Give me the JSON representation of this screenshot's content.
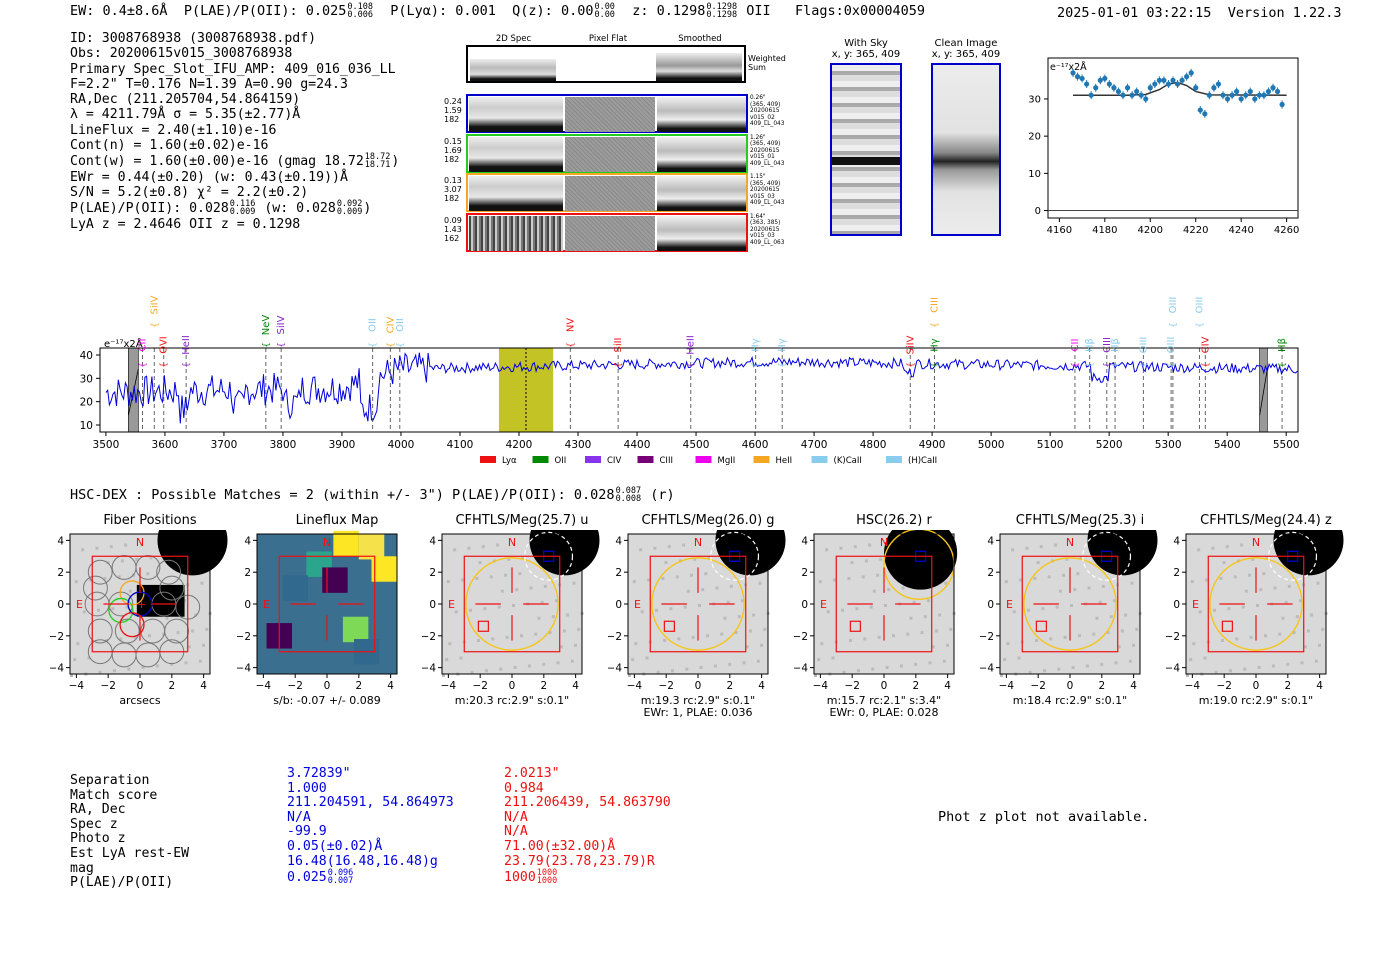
{
  "header": {
    "ew": "EW: 0.4±8.6Å",
    "plae_label": "P(LAE)/P(OII): 0.025",
    "plae_hi": "0.108",
    "plae_lo": "0.006",
    "plya": "P(Lyα): 0.001",
    "qz_label": "Q(z): 0.00",
    "qz_hi": "0.00",
    "qz_lo": "0.00",
    "z_label": "z: 0.1298",
    "z_hi": "0.1298",
    "z_lo": "0.1298",
    "z_line": "OII",
    "flags": "Flags:0x00004059",
    "timestamp": "2025-01-01 03:22:15",
    "version": "Version 1.22.3"
  },
  "info": {
    "id": "ID: 3008768938 (3008768938.pdf)",
    "obs": "Obs: 20200615v015_3008768938",
    "slot": "Primary Spec_Slot_IFU_AMP: 409_016_036_LL",
    "params": "F=2.2\"  T=0.176  N=1.39  A=0.90  g=24.3",
    "radec": "RA,Dec (211.205704,54.864159)",
    "lambda": "λ = 4211.79Å  σ = 5.35(±2.77)Å",
    "lineflux": "LineFlux = 2.40(±1.10)e-16",
    "contn": "Cont(n) = 1.60(±0.02)e-16",
    "contw": "Cont(w) = 1.60(±0.00)e-16 (gmag 18.72",
    "contw_hi": "18.72",
    "contw_lo": "18.71",
    "ewr": "EWr = 0.44(±0.20) (w: 0.43(±0.19))Å",
    "sn": "S/N = 5.2(±0.8)  χ² = 2.2(±0.2)",
    "plae": "P(LAE)/P(OII): 0.028",
    "plae_hi": "0.116",
    "plae_lo": "0.009",
    "plae_w": "(w: 0.028",
    "plae_w_hi": "0.092",
    "plae_w_lo": "0.009",
    "lyaz": "LyA z = 2.4646  OII z = 0.1298"
  },
  "spec2d": {
    "col_titles": [
      "2D Spec",
      "Pixel Flat",
      "Smoothed"
    ],
    "weighted_sum": [
      "Weighted",
      "Sum"
    ],
    "rows": [
      {
        "stats": [
          "0.24",
          "1.59",
          "182"
        ],
        "meta": [
          "0.26\"",
          "(365, 409)",
          "20200615",
          "v015_02",
          "409_LL_043"
        ],
        "color": "#0000cc"
      },
      {
        "stats": [
          "0.15",
          "1.69",
          "182"
        ],
        "meta": [
          "1.26\"",
          "(365, 409)",
          "20200615",
          "v015_01",
          "409_LL_043"
        ],
        "color": "#22cc22"
      },
      {
        "stats": [
          "0.13",
          "3.07",
          "182"
        ],
        "meta": [
          "1.15\"",
          "(365, 409)",
          "20200615",
          "v015_03",
          "409_LL_043"
        ],
        "color": "#f5a623"
      },
      {
        "stats": [
          "0.09",
          "1.43",
          "162"
        ],
        "meta": [
          "1.64\"",
          "(363, 385)",
          "20200615",
          "v015_03",
          "409_LL_063"
        ],
        "color": "#ee1111"
      }
    ]
  },
  "cutouts": {
    "with_sky": [
      "With Sky",
      "x, y: 365, 409"
    ],
    "clean": [
      "Clean Image",
      "x, y: 365, 409"
    ]
  },
  "zoom_plot": {
    "scale_label": "e⁻¹⁷x2Å",
    "x_ticks": [
      "4160",
      "4180",
      "4200",
      "4220",
      "4240",
      "4260"
    ],
    "y_ticks": [
      "0",
      "10",
      "20",
      "30"
    ],
    "xlim": [
      4155,
      4265
    ],
    "ylim": [
      -2,
      41
    ],
    "points": [
      [
        4166,
        37
      ],
      [
        4168,
        36
      ],
      [
        4170,
        35.5
      ],
      [
        4172,
        34
      ],
      [
        4174,
        31
      ],
      [
        4176,
        33
      ],
      [
        4178,
        35
      ],
      [
        4180,
        35.5
      ],
      [
        4182,
        34
      ],
      [
        4184,
        33
      ],
      [
        4186,
        32
      ],
      [
        4188,
        31
      ],
      [
        4190,
        33
      ],
      [
        4192,
        31
      ],
      [
        4194,
        32
      ],
      [
        4196,
        31
      ],
      [
        4198,
        30
      ],
      [
        4200,
        33
      ],
      [
        4202,
        34
      ],
      [
        4204,
        35
      ],
      [
        4206,
        35
      ],
      [
        4208,
        34
      ],
      [
        4210,
        35
      ],
      [
        4212,
        34
      ],
      [
        4214,
        35
      ],
      [
        4216,
        36
      ],
      [
        4218,
        37
      ],
      [
        4220,
        33
      ],
      [
        4222,
        27
      ],
      [
        4224,
        26
      ],
      [
        4226,
        31
      ],
      [
        4228,
        33
      ],
      [
        4230,
        34
      ],
      [
        4232,
        31
      ],
      [
        4234,
        30
      ],
      [
        4236,
        31
      ],
      [
        4238,
        32
      ],
      [
        4240,
        30
      ],
      [
        4242,
        31
      ],
      [
        4244,
        32
      ],
      [
        4246,
        30
      ],
      [
        4248,
        31
      ],
      [
        4250,
        31
      ],
      [
        4252,
        32
      ],
      [
        4254,
        33
      ],
      [
        4256,
        32
      ],
      [
        4258,
        28.5
      ]
    ],
    "fit": [
      [
        4166,
        31
      ],
      [
        4190,
        31
      ],
      [
        4198,
        31.2
      ],
      [
        4204,
        32.5
      ],
      [
        4208,
        34
      ],
      [
        4212,
        34.4
      ],
      [
        4216,
        33.6
      ],
      [
        4220,
        32
      ],
      [
        4226,
        31.1
      ],
      [
        4260,
        31
      ]
    ]
  },
  "spectrum": {
    "scale_label": "e⁻¹⁷x2Å",
    "x_ticks": [
      "3500",
      "3600",
      "3700",
      "3800",
      "3900",
      "4000",
      "4100",
      "4200",
      "4300",
      "4400",
      "4500",
      "4600",
      "4700",
      "4800",
      "4900",
      "5000",
      "5100",
      "5200",
      "5300",
      "5400",
      "5500"
    ],
    "y_ticks": [
      "10",
      "20",
      "30",
      "40"
    ],
    "xlim": [
      3490,
      5520
    ],
    "ylim": [
      7,
      43
    ],
    "lines": [
      {
        "label": "CII",
        "x": 3562,
        "color": "#ee00ee",
        "row": 2
      },
      {
        "label": "SiIV",
        "x": 3582,
        "color": "#f5a623",
        "row": 0
      },
      {
        "label": "OVI",
        "x": 3598,
        "color": "#ee1111",
        "row": 2
      },
      {
        "label": "HeII",
        "x": 3636,
        "color": "#8822cc",
        "row": 2
      },
      {
        "label": "NeV",
        "x": 3771,
        "color": "#008800",
        "row": 1
      },
      {
        "label": "SiIV",
        "x": 3797,
        "color": "#8822cc",
        "row": 1
      },
      {
        "label": "OII",
        "x": 3952,
        "color": "#88ccee",
        "row": 1
      },
      {
        "label": "CIV",
        "x": 3982,
        "color": "#f5a623",
        "row": 1
      },
      {
        "label": "OII",
        "x": 3998,
        "color": "#88ccee",
        "row": 1
      },
      {
        "label": "NV",
        "x": 4287,
        "color": "#ee1111",
        "row": 1
      },
      {
        "label": "SiII",
        "x": 4368,
        "color": "#ee1111",
        "row": 2
      },
      {
        "label": "HeII",
        "x": 4491,
        "color": "#8822cc",
        "row": 2
      },
      {
        "label": "Hγ",
        "x": 4601,
        "color": "#88ccee",
        "row": 2
      },
      {
        "label": "Hγ",
        "x": 4646,
        "color": "#88ccee",
        "row": 2
      },
      {
        "label": "SiIV",
        "x": 4863,
        "color": "#ee1111",
        "row": 2
      },
      {
        "label": "CIII",
        "x": 4904,
        "color": "#f5a623",
        "row": 0
      },
      {
        "label": "Hγ",
        "x": 4904,
        "color": "#008800",
        "row": 2
      },
      {
        "label": "CII",
        "x": 5142,
        "color": "#ee00ee",
        "row": 2
      },
      {
        "label": "Hβ",
        "x": 5167,
        "color": "#88ccee",
        "row": 2
      },
      {
        "label": "CIII",
        "x": 5196,
        "color": "#8822cc",
        "row": 2
      },
      {
        "label": "Hβ",
        "x": 5210,
        "color": "#88ccee",
        "row": 2
      },
      {
        "label": "OIII",
        "x": 5258,
        "color": "#88ccee",
        "row": 2
      },
      {
        "label": "OIII",
        "x": 5305,
        "color": "#88ccee",
        "row": 2
      },
      {
        "label": "OIII",
        "x": 5308,
        "color": "#88ccee",
        "row": 0
      },
      {
        "label": "OIII",
        "x": 5353,
        "color": "#88ccee",
        "row": 0
      },
      {
        "label": "CIV",
        "x": 5363,
        "color": "#ee1111",
        "row": 2
      },
      {
        "label": "Hβ",
        "x": 5493,
        "color": "#008800",
        "row": 2
      }
    ],
    "legend": [
      {
        "label": "Lyα",
        "color": "#ee1111"
      },
      {
        "label": "OII",
        "color": "#008800"
      },
      {
        "label": "CIV",
        "color": "#8833ee"
      },
      {
        "label": "CIII",
        "color": "#770077"
      },
      {
        "label": "MgII",
        "color": "#ee00ee"
      },
      {
        "label": "HeII",
        "color": "#f5a623"
      },
      {
        "label": "(K)CaII",
        "color": "#88ccee"
      },
      {
        "label": "(H)CaII",
        "color": "#88ccee"
      }
    ]
  },
  "hsc_line": "HSC-DEX : Possible Matches = 2 (within +/- 3\")  P(LAE)/P(OII): 0.028",
  "hsc_hi": "0.087",
  "hsc_lo": "0.008",
  "hsc_band": "(r)",
  "stamps": [
    {
      "title": "Fiber Positions",
      "cap": [
        "arcsecs"
      ]
    },
    {
      "title": "Lineflux Map",
      "cap": [
        "s/b: -0.07 +/- 0.089"
      ]
    },
    {
      "title": "CFHTLS/Meg(25.7) u",
      "cap": [
        "m:20.3 rc:2.9\"  s:0.1\""
      ]
    },
    {
      "title": "CFHTLS/Meg(26.0) g",
      "cap": [
        "m:19.3 rc:2.9\"  s:0.1\"",
        "EWr: 1, PLAE: 0.036"
      ]
    },
    {
      "title": "HSC(26.2) r",
      "cap": [
        "m:15.7  rc:2.1\"  s:3.4\"",
        "EWr: 0, PLAE: 0.028"
      ]
    },
    {
      "title": "CFHTLS/Meg(25.3) i",
      "cap": [
        "m:18.4 rc:2.9\"  s:0.1\""
      ]
    },
    {
      "title": "CFHTLS/Meg(24.4) z",
      "cap": [
        "m:19.0 rc:2.9\"  s:0.1\""
      ]
    }
  ],
  "stamp_ticks": {
    "x": [
      "−4",
      "−2",
      "0",
      "2",
      "4"
    ],
    "y": [
      "4",
      "2",
      "0",
      "−2",
      "−4"
    ],
    "n": "N",
    "e": "E"
  },
  "matches": {
    "labels": [
      "Separation",
      "Match score",
      "RA, Dec",
      "Spec z",
      "Photo z",
      "Est LyA rest-EW",
      "mag",
      "P(LAE)/P(OII)"
    ],
    "m1": [
      "3.72839\"",
      "1.000",
      "211.204591, 54.864973",
      "N/A",
      "-99.9",
      "0.05(±0.02)Å",
      "16.48(16.48,16.48)g",
      "0.025"
    ],
    "m1_hi": "0.096",
    "m1_lo": "0.007",
    "m2": [
      "2.0213\"",
      "0.984",
      "211.206439, 54.863790",
      "N/A",
      "N/A",
      "71.00(±32.00)Å",
      "23.79(23.78,23.79)R",
      "1000"
    ],
    "m2_hi": "1000",
    "m2_lo": "1000"
  },
  "phot_z": "Phot z plot not available.",
  "colors": {
    "blue": "#0000dd",
    "red": "#ee1111",
    "spec": "#0000dd",
    "band": "#b8b800"
  }
}
